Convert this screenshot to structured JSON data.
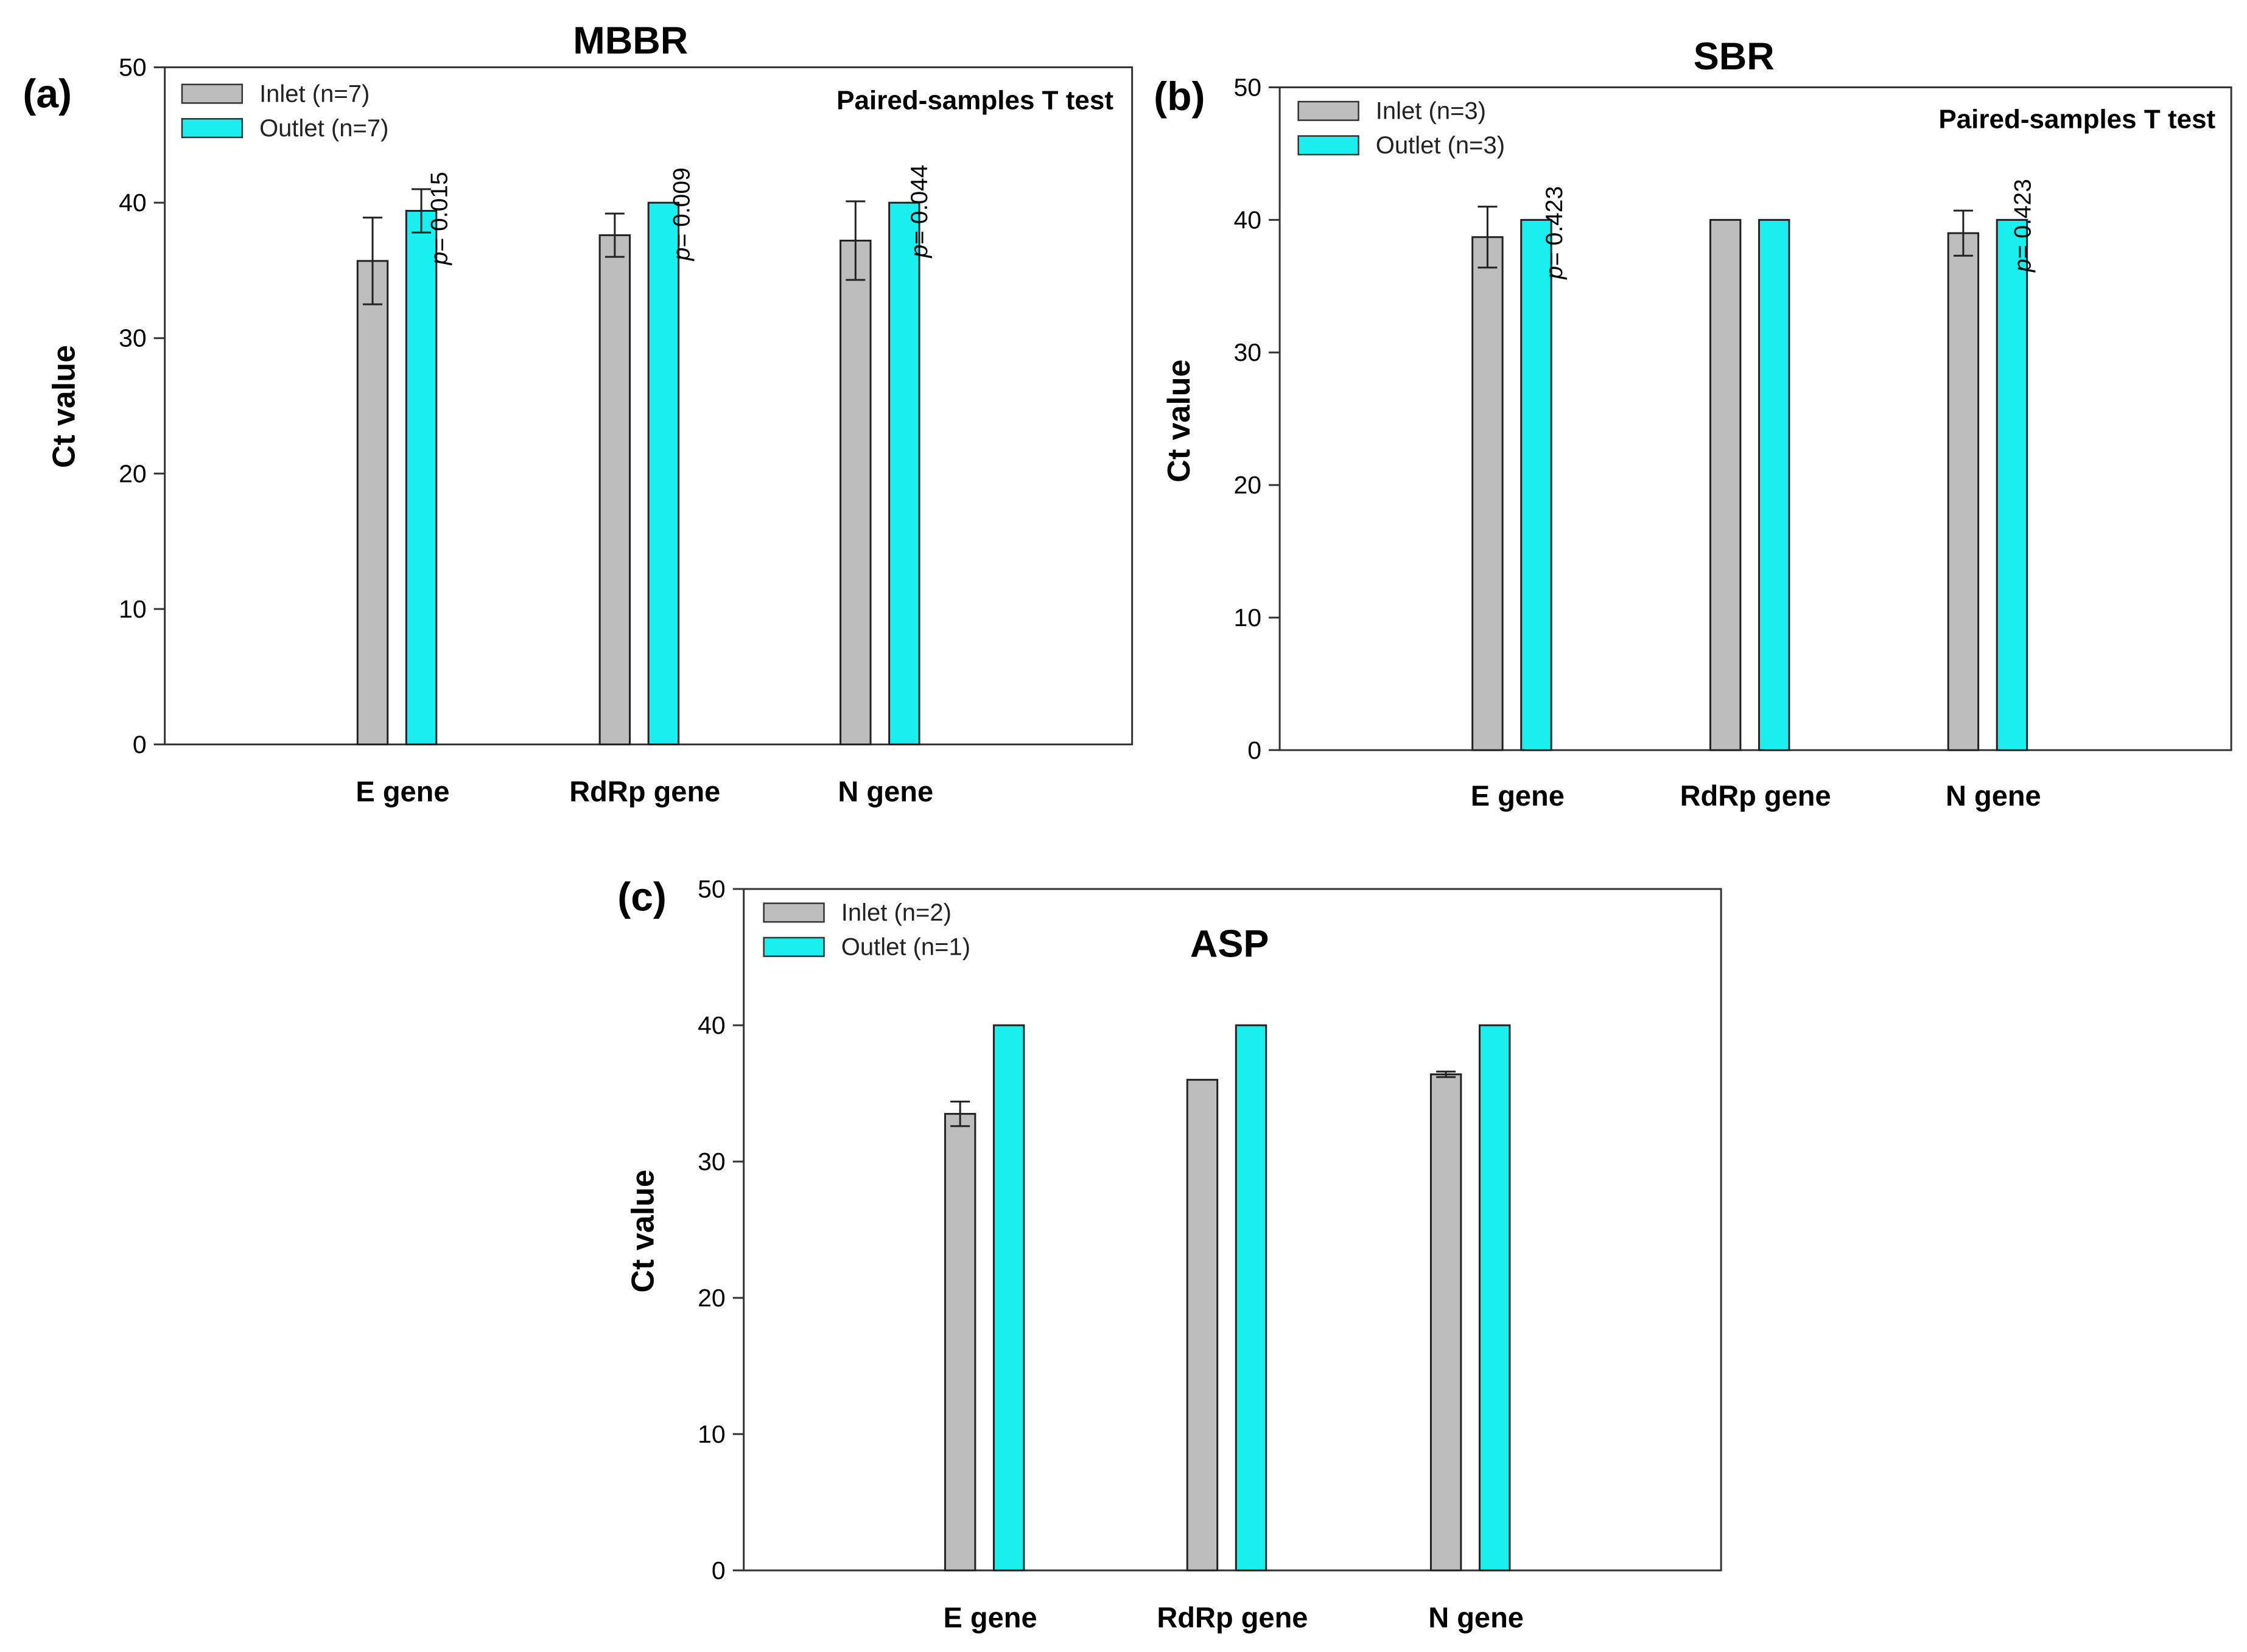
{
  "figure": {
    "panel_letters": [
      "(a)",
      "(b)",
      "(c)"
    ]
  },
  "colors": {
    "inlet": "#BDBDBD",
    "outlet": "#1AEFEF",
    "axis": "#333333",
    "text": "#000000"
  },
  "chart_data": [
    {
      "type": "bar",
      "panel": "(a)",
      "title": "MBBR",
      "annotation": "Paired-samples T test",
      "xlabel": "",
      "ylabel": "Ct value",
      "ylim": [
        0,
        50
      ],
      "yticks": [
        0,
        10,
        20,
        30,
        40,
        50
      ],
      "grid": false,
      "legend_position": "top-left",
      "categories": [
        "E gene",
        "RdRp gene",
        "N gene"
      ],
      "series": [
        {
          "name": "Inlet (n=7)",
          "values": [
            35.7,
            37.6,
            37.2
          ],
          "errors": [
            3.2,
            1.6,
            2.9
          ]
        },
        {
          "name": "Outlet (n=7)",
          "values": [
            39.4,
            40,
            40
          ],
          "errors": [
            1.6,
            0,
            0
          ]
        }
      ],
      "p_values": [
        {
          "prefix": "p",
          "text": "= 0.015"
        },
        {
          "prefix": "p",
          "text": "= 0.009"
        },
        {
          "prefix": "p",
          "text": "= 0.044"
        }
      ]
    },
    {
      "type": "bar",
      "panel": "(b)",
      "title": "SBR",
      "annotation": "Paired-samples T test",
      "xlabel": "",
      "ylabel": "Ct value",
      "ylim": [
        0,
        50
      ],
      "yticks": [
        0,
        10,
        20,
        30,
        40,
        50
      ],
      "grid": false,
      "legend_position": "top-left",
      "categories": [
        "E gene",
        "RdRp gene",
        "N gene"
      ],
      "series": [
        {
          "name": "Inlet (n=3)",
          "values": [
            38.7,
            40,
            39
          ],
          "errors": [
            2.3,
            0,
            1.7
          ]
        },
        {
          "name": "Outlet (n=3)",
          "values": [
            40,
            40,
            40
          ],
          "errors": [
            0,
            0,
            0
          ]
        }
      ],
      "p_values": [
        {
          "prefix": "p",
          "text": "= 0.423"
        },
        null,
        {
          "prefix": "p",
          "text": "= 0.423"
        }
      ]
    },
    {
      "type": "bar",
      "panel": "(c)",
      "title": "ASP",
      "annotation": "",
      "xlabel": "",
      "ylabel": "Ct value",
      "ylim": [
        0,
        50
      ],
      "yticks": [
        0,
        10,
        20,
        30,
        40,
        50
      ],
      "grid": false,
      "legend_position": "top-left",
      "categories": [
        "E gene",
        "RdRp gene",
        "N gene"
      ],
      "series": [
        {
          "name": "Inlet (n=2)",
          "values": [
            33.5,
            36,
            36.4
          ],
          "errors": [
            0.9,
            0,
            0.2
          ]
        },
        {
          "name": "Outlet (n=1)",
          "values": [
            40,
            40,
            40
          ],
          "errors": [
            0,
            0,
            0
          ]
        }
      ],
      "p_values": [
        null,
        null,
        null
      ]
    }
  ]
}
